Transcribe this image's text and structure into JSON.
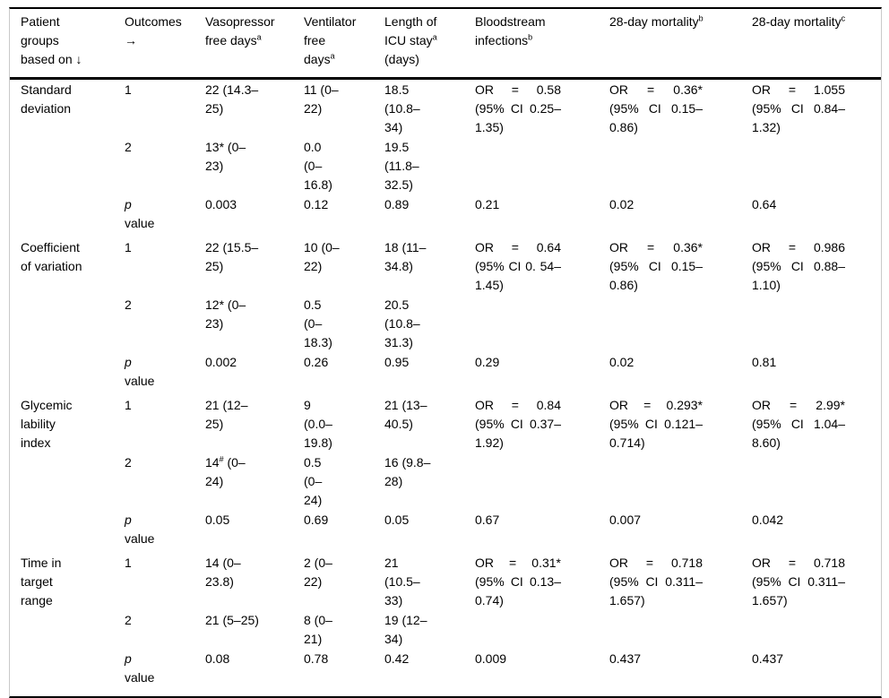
{
  "table": {
    "columns": [
      "Patient groups based on ↓",
      "Outcomes →",
      "Vasopressor free days^{a}",
      "Ventilator free days^{a}",
      "Length of ICU stay^{a} (days)",
      "Bloodstream infections^{b}",
      "28-day mortality^{b}",
      "28-day mortality^{c}"
    ],
    "groups": [
      {
        "name": "Standard deviation",
        "rows": [
          {
            "outcome": "1",
            "cells": [
              "22 (14.3–25)",
              "11 (0–22)",
              "18.5 (10.8–34)",
              "OR = 0.58 (95% CI 0.25–1.35)",
              "OR = 0.36* (95% CI 0.15–0.86)",
              "OR = 1.055 (95% CI 0.84–1.32)"
            ]
          },
          {
            "outcome": "2",
            "cells": [
              "13* (0–23)",
              "0.0 (0–16.8)",
              "19.5 (11.8–32.5)",
              "",
              "",
              ""
            ]
          },
          {
            "outcome": "_p_\nvalue",
            "cells": [
              "0.003",
              "0.12",
              "0.89",
              "0.21",
              "0.02",
              "0.64"
            ]
          }
        ]
      },
      {
        "name": "Coefficient of variation",
        "rows": [
          {
            "outcome": "1",
            "cells": [
              "22 (15.5–25)",
              "10 (0–22)",
              "18 (11–34.8)",
              "OR = 0.64 (95% CI 0. 54–1.45)",
              "OR = 0.36* (95% CI 0.15–0.86)",
              "OR = 0.986 (95% CI 0.88–1.10)"
            ]
          },
          {
            "outcome": "2",
            "cells": [
              "12* (0–23)",
              "0.5 (0–18.3)",
              "20.5 (10.8–31.3)",
              "",
              "",
              ""
            ]
          },
          {
            "outcome": "_p_\nvalue",
            "cells": [
              "0.002",
              "0.26",
              "0.95",
              "0.29",
              "0.02",
              "0.81"
            ]
          }
        ]
      },
      {
        "name": "Glycemic lability index",
        "rows": [
          {
            "outcome": "1",
            "cells": [
              "21 (12–25)",
              "9 (0.0–19.8)",
              "21 (13–40.5)",
              "OR = 0.84 (95% CI 0.37–1.92)",
              "OR = 0.293* (95% CI 0.121–0.714)",
              "OR = 2.99* (95% CI 1.04–8.60)"
            ]
          },
          {
            "outcome": "2",
            "cells": [
              "14^{#} (0–24)",
              "0.5 (0–24)",
              "16 (9.8–28)",
              "",
              "",
              ""
            ]
          },
          {
            "outcome": "_p_\nvalue",
            "cells": [
              "0.05",
              "0.69",
              "0.05",
              "0.67",
              "0.007",
              "0.042"
            ]
          }
        ]
      },
      {
        "name": "Time in target range",
        "rows": [
          {
            "outcome": "1",
            "cells": [
              "14 (0–23.8)",
              "2 (0–22)",
              "21 (10.5–33)",
              "OR = 0.31* (95% CI 0.13–0.74)",
              "OR = 0.718 (95% CI 0.311–1.657)",
              "OR = 0.718 (95% CI 0.311–1.657)"
            ]
          },
          {
            "outcome": "2",
            "cells": [
              "21 (5–25)",
              "8 (0–21)",
              "19 (12–34)",
              "",
              "",
              ""
            ]
          },
          {
            "outcome": "_p_\nvalue",
            "cells": [
              "0.08",
              "0.78",
              "0.42",
              "0.009",
              "0.437",
              "0.437"
            ]
          }
        ]
      }
    ]
  },
  "colors": {
    "rule": "#000000",
    "side_border": "#c9c9c9",
    "text": "#000000",
    "background": "#ffffff"
  }
}
